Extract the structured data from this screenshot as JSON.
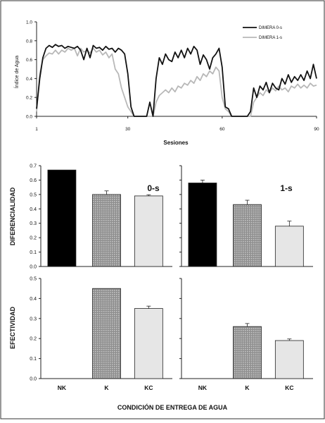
{
  "chart_data": [
    {
      "type": "line",
      "ylabel": "Índice de Agua",
      "xlabel": "Sesiones",
      "ylim": [
        0,
        1.0
      ],
      "yticks": [
        0.0,
        0.2,
        0.4,
        0.6,
        0.8,
        1.0
      ],
      "xlim": [
        1,
        90
      ],
      "xticks": [
        1,
        30,
        60,
        90
      ],
      "legend_position": "top-right",
      "series": [
        {
          "name": "DIMERA 0-s",
          "color": "#111111",
          "x": [
            1,
            2,
            3,
            4,
            5,
            6,
            7,
            8,
            9,
            10,
            11,
            12,
            13,
            14,
            15,
            16,
            17,
            18,
            19,
            20,
            21,
            22,
            23,
            24,
            25,
            26,
            27,
            28,
            29,
            30,
            31,
            32,
            33,
            34,
            35,
            36,
            37,
            38,
            39,
            40,
            41,
            42,
            43,
            44,
            45,
            46,
            47,
            48,
            49,
            50,
            51,
            52,
            53,
            54,
            55,
            56,
            57,
            58,
            59,
            60,
            61,
            62,
            63,
            64,
            65,
            66,
            67,
            68,
            69,
            70,
            71,
            72,
            73,
            74,
            75,
            76,
            77,
            78,
            79,
            80,
            81,
            82,
            83,
            84,
            85,
            86,
            87,
            88,
            89,
            90
          ],
          "y": [
            0.08,
            0.4,
            0.62,
            0.72,
            0.75,
            0.73,
            0.76,
            0.74,
            0.75,
            0.72,
            0.74,
            0.73,
            0.72,
            0.74,
            0.7,
            0.6,
            0.72,
            0.62,
            0.75,
            0.72,
            0.73,
            0.7,
            0.74,
            0.71,
            0.72,
            0.68,
            0.72,
            0.7,
            0.66,
            0.45,
            0.1,
            0.0,
            0.0,
            0.0,
            0.0,
            0.0,
            0.15,
            0.0,
            0.4,
            0.62,
            0.55,
            0.66,
            0.6,
            0.58,
            0.68,
            0.62,
            0.7,
            0.62,
            0.72,
            0.66,
            0.74,
            0.7,
            0.55,
            0.65,
            0.6,
            0.5,
            0.62,
            0.66,
            0.72,
            0.52,
            0.1,
            0.08,
            0.0,
            0.0,
            0.0,
            0.0,
            0.0,
            0.0,
            0.05,
            0.3,
            0.2,
            0.32,
            0.28,
            0.36,
            0.25,
            0.35,
            0.3,
            0.28,
            0.4,
            0.34,
            0.44,
            0.36,
            0.42,
            0.38,
            0.44,
            0.38,
            0.48,
            0.4,
            0.55,
            0.4
          ]
        },
        {
          "name": "DIMERA 1-s",
          "color": "#b8b8b8",
          "x": [
            1,
            2,
            3,
            4,
            5,
            6,
            7,
            8,
            9,
            10,
            11,
            12,
            13,
            14,
            15,
            16,
            17,
            18,
            19,
            20,
            21,
            22,
            23,
            24,
            25,
            26,
            27,
            28,
            29,
            30,
            31,
            32,
            33,
            34,
            35,
            36,
            37,
            38,
            39,
            40,
            41,
            42,
            43,
            44,
            45,
            46,
            47,
            48,
            49,
            50,
            51,
            52,
            53,
            54,
            55,
            56,
            57,
            58,
            59,
            60,
            61,
            62,
            63,
            64,
            65,
            66,
            67,
            68,
            69,
            70,
            71,
            72,
            73,
            74,
            75,
            76,
            77,
            78,
            79,
            80,
            81,
            82,
            83,
            84,
            85,
            86,
            87,
            88,
            89,
            90
          ],
          "y": [
            0.05,
            0.45,
            0.6,
            0.64,
            0.67,
            0.66,
            0.7,
            0.66,
            0.7,
            0.68,
            0.72,
            0.7,
            0.72,
            0.64,
            0.72,
            0.68,
            0.7,
            0.67,
            0.72,
            0.68,
            0.7,
            0.65,
            0.68,
            0.62,
            0.66,
            0.5,
            0.45,
            0.3,
            0.2,
            0.1,
            0.05,
            0.0,
            0.0,
            0.0,
            0.0,
            0.0,
            0.0,
            0.0,
            0.15,
            0.22,
            0.25,
            0.28,
            0.25,
            0.3,
            0.26,
            0.32,
            0.3,
            0.35,
            0.33,
            0.38,
            0.35,
            0.42,
            0.38,
            0.45,
            0.42,
            0.48,
            0.45,
            0.52,
            0.48,
            0.2,
            0.08,
            0.05,
            0.0,
            0.0,
            0.0,
            0.0,
            0.0,
            0.0,
            0.0,
            0.15,
            0.2,
            0.25,
            0.22,
            0.28,
            0.25,
            0.3,
            0.27,
            0.32,
            0.28,
            0.3,
            0.26,
            0.32,
            0.3,
            0.34,
            0.3,
            0.33,
            0.3,
            0.35,
            0.32,
            0.33
          ]
        }
      ]
    },
    {
      "type": "bar",
      "panel": "top-left",
      "annotation": "0-s",
      "ylabel": "DIFERENCIALIDAD",
      "ylim": [
        0,
        0.7
      ],
      "yticks": [
        0.0,
        0.1,
        0.2,
        0.3,
        0.4,
        0.5,
        0.6,
        0.7
      ],
      "categories": [
        "NK",
        "K",
        "KC"
      ],
      "values": [
        0.67,
        0.5,
        0.49
      ],
      "errors": [
        0.0,
        0.025,
        0.008
      ]
    },
    {
      "type": "bar",
      "panel": "top-right",
      "annotation": "1-s",
      "ylim": [
        0,
        0.7
      ],
      "categories": [
        "NK",
        "K",
        "KC"
      ],
      "values": [
        0.58,
        0.43,
        0.28
      ],
      "errors": [
        0.02,
        0.03,
        0.035
      ]
    },
    {
      "type": "bar",
      "panel": "bottom-left",
      "ylabel": "EFECTIVIDAD",
      "ylim": [
        0,
        0.5
      ],
      "yticks": [
        0.0,
        0.1,
        0.2,
        0.3,
        0.4,
        0.5
      ],
      "categories": [
        "NK",
        "K",
        "KC"
      ],
      "values": [
        0.0,
        0.45,
        0.35
      ],
      "errors": [
        0.0,
        0.0,
        0.012
      ]
    },
    {
      "type": "bar",
      "panel": "bottom-right",
      "ylim": [
        0,
        0.5
      ],
      "categories": [
        "NK",
        "K",
        "KC"
      ],
      "values": [
        0.0,
        0.26,
        0.19
      ],
      "errors": [
        0.0,
        0.015,
        0.008
      ]
    }
  ],
  "xaxis_bottom_label": "CONDICIÓN DE ENTREGA DE AGUA",
  "colors": {
    "NK": "#000000",
    "K": "#9a9a9a",
    "KC": "#e6e6e6",
    "axis": "#222222"
  }
}
